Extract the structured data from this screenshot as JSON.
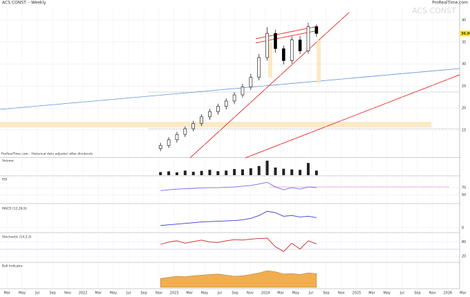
{
  "chart_data": [
    {
      "type": "candlestick",
      "title": "ACS CONST. - Weekly",
      "source": "ProRealTime.com",
      "watermark": "ACS CONST",
      "note": "ProRealTime.com - Historical data adjusted after dividends",
      "x": [
        2022.85,
        2022.94,
        2023.03,
        2023.12,
        2023.21,
        2023.3,
        2023.39,
        2023.48,
        2023.57,
        2023.66,
        2023.75,
        2023.84,
        2023.93,
        2024.02,
        2024.11,
        2024.2,
        2024.29,
        2024.38,
        2024.47,
        2024.56
      ],
      "open": [
        10.8,
        11.5,
        12.8,
        14.0,
        15.3,
        16.5,
        18.0,
        19.2,
        20.4,
        21.6,
        23.0,
        24.8,
        27.0,
        31.5,
        37.0,
        33.5,
        30.8,
        35.5,
        33.0,
        38.5
      ],
      "high": [
        12.1,
        13.4,
        14.6,
        15.8,
        17.1,
        18.6,
        19.8,
        21.0,
        22.2,
        23.6,
        25.5,
        27.8,
        32.3,
        38.4,
        37.8,
        34.2,
        36.3,
        36.4,
        39.4,
        39.0
      ],
      "low": [
        10.2,
        10.9,
        12.1,
        13.4,
        14.7,
        15.9,
        17.3,
        18.5,
        19.7,
        20.9,
        22.4,
        24.1,
        26.3,
        30.8,
        32.6,
        29.9,
        30.1,
        32.3,
        32.4,
        36.2
      ],
      "close": [
        11.5,
        12.8,
        14.0,
        15.3,
        16.5,
        18.0,
        19.2,
        20.4,
        21.6,
        23.0,
        24.8,
        27.0,
        31.5,
        37.0,
        33.5,
        30.8,
        35.5,
        33.0,
        38.5,
        36.96
      ],
      "xlim": [
        2021.09,
        2026.13
      ],
      "ylim": [
        9,
        43
      ],
      "yticks": [
        15,
        20,
        25,
        30,
        35,
        40
      ],
      "xticks": [
        {
          "value": 2021.167,
          "label": "Mar"
        },
        {
          "value": 2021.333,
          "label": "May"
        },
        {
          "value": 2021.5,
          "label": "Jul"
        },
        {
          "value": 2021.667,
          "label": "Sep"
        },
        {
          "value": 2021.833,
          "label": "Nov"
        },
        2022,
        {
          "value": 2022.167,
          "label": "Mar"
        },
        {
          "value": 2022.333,
          "label": "May"
        },
        {
          "value": 2022.5,
          "label": "Jul"
        },
        {
          "value": 2022.667,
          "label": "Sep"
        },
        {
          "value": 2022.833,
          "label": "Nov"
        },
        2023,
        {
          "value": 2023.167,
          "label": "Mar"
        },
        {
          "value": 2023.333,
          "label": "May"
        },
        {
          "value": 2023.5,
          "label": "Jul"
        },
        {
          "value": 2023.667,
          "label": "Sep"
        },
        {
          "value": 2023.833,
          "label": "Nov"
        },
        2024,
        {
          "value": 2024.167,
          "label": "Mar"
        },
        {
          "value": 2024.333,
          "label": "May"
        },
        {
          "value": 2024.5,
          "label": "Jul"
        },
        {
          "value": 2024.667,
          "label": "Sep"
        },
        {
          "value": 2024.833,
          "label": "Nov"
        },
        2025,
        {
          "value": 2025.167,
          "label": "Mar"
        },
        {
          "value": 2025.333,
          "label": "May"
        },
        {
          "value": 2025.5,
          "label": "Jul"
        },
        {
          "value": 2025.667,
          "label": "Sep"
        },
        {
          "value": 2025.833,
          "label": "Nov"
        },
        2026,
        {
          "value": 2026.167,
          "label": "Mar"
        }
      ]
    },
    {
      "type": "bar",
      "title": "Volume",
      "color": "#222222",
      "values": [
        20,
        25,
        18,
        30,
        22,
        28,
        35,
        26,
        30,
        40,
        38,
        45,
        60,
        95,
        50,
        42,
        38,
        35,
        80,
        30
      ],
      "ylim": [
        0,
        100
      ]
    },
    {
      "type": "line",
      "title": "RSI",
      "color": "#7b68ee",
      "values": [
        62,
        64,
        66,
        67,
        68,
        69,
        70,
        70,
        71,
        72,
        74,
        76,
        80,
        85,
        72,
        64,
        70,
        66,
        72,
        70
      ],
      "ylim": [
        30,
        95
      ],
      "yticks": [
        50,
        70
      ]
    },
    {
      "type": "line",
      "title": "MACD (12,26,9)",
      "color": "#3a3ad0",
      "values": [
        0.3,
        0.4,
        0.5,
        0.6,
        0.7,
        0.8,
        0.85,
        0.9,
        0.95,
        1.0,
        1.1,
        1.3,
        1.7,
        2.3,
        2.1,
        1.6,
        1.7,
        1.5,
        1.6,
        1.4
      ],
      "ylim": [
        -0.5,
        2.8
      ],
      "yticks": [
        0
      ]
    },
    {
      "type": "line",
      "title": "Stochastic (14,3,3)",
      "color": "#cc2222",
      "values": [
        70,
        80,
        85,
        75,
        82,
        88,
        80,
        78,
        85,
        90,
        88,
        92,
        95,
        96,
        60,
        40,
        75,
        50,
        85,
        72
      ],
      "ylim": [
        0,
        105
      ],
      "yticks": [
        20,
        80
      ]
    },
    {
      "type": "area",
      "title": "Bull Indicator",
      "color": "#f0a030",
      "values": [
        40,
        45,
        50,
        48,
        52,
        55,
        58,
        60,
        55,
        50,
        52,
        58,
        65,
        75,
        70,
        60,
        62,
        58,
        65,
        62
      ],
      "ylim": [
        0,
        100
      ]
    }
  ]
}
